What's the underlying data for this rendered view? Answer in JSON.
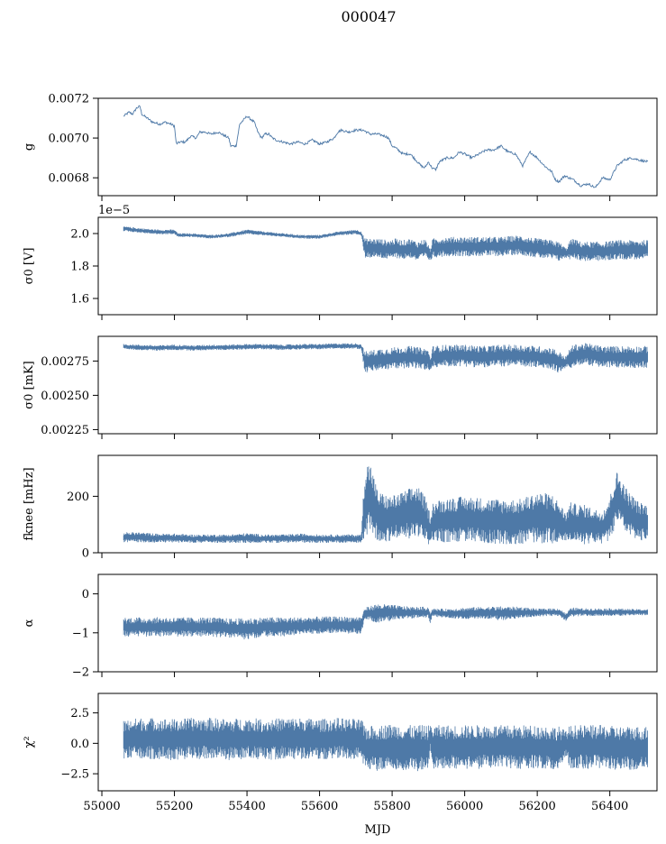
{
  "figure": {
    "title": "000047",
    "xlabel": "MJD",
    "line_color": "#4e79a7"
  },
  "chart_data": [
    {
      "type": "line",
      "ylabel": "g",
      "ylim": [
        0.00671,
        0.0072
      ],
      "yticks": [
        "0.0068",
        "0.0070",
        "0.0072"
      ],
      "ytick_values": [
        0.0068,
        0.007,
        0.0072
      ],
      "xlim": [
        54990,
        56530
      ],
      "series": [
        {
          "render": "line",
          "x": [
            55060,
            55075,
            55085,
            55095,
            55105,
            55110,
            55125,
            55140,
            55160,
            55175,
            55190,
            55200,
            55205,
            55215,
            55230,
            55245,
            55260,
            55270,
            55285,
            55300,
            55320,
            55340,
            55350,
            55355,
            55370,
            55380,
            55400,
            55420,
            55430,
            55440,
            55450,
            55460,
            55470,
            55480,
            55500,
            55520,
            55540,
            55560,
            55580,
            55600,
            55620,
            55640,
            55650,
            55660,
            55680,
            55700,
            55720,
            55740,
            55760,
            55780,
            55790,
            55800,
            55810,
            55830,
            55850,
            55860,
            55870,
            55880,
            55890,
            55900,
            55910,
            55920,
            55930,
            55950,
            55970,
            55985,
            56000,
            56020,
            56040,
            56060,
            56080,
            56100,
            56120,
            56140,
            56160,
            56180,
            56200,
            56220,
            56240,
            56250,
            56260,
            56275,
            56300,
            56320,
            56340,
            56360,
            56380,
            56400,
            56420,
            56440,
            56460,
            56480,
            56505
          ],
          "y": [
            0.00711,
            0.00713,
            0.00712,
            0.00715,
            0.00716,
            0.00712,
            0.0071,
            0.00708,
            0.00707,
            0.00708,
            0.00707,
            0.00706,
            0.00697,
            0.00698,
            0.00698,
            0.00701,
            0.007,
            0.00703,
            0.00703,
            0.00702,
            0.00703,
            0.00701,
            0.007,
            0.00696,
            0.00696,
            0.00707,
            0.00711,
            0.00708,
            0.00703,
            0.007,
            0.00702,
            0.00702,
            0.007,
            0.00699,
            0.00698,
            0.00697,
            0.00698,
            0.00697,
            0.00699,
            0.00697,
            0.00698,
            0.007,
            0.00703,
            0.00704,
            0.00703,
            0.00704,
            0.00704,
            0.00702,
            0.00702,
            0.00701,
            0.007,
            0.00696,
            0.00695,
            0.00692,
            0.00692,
            0.0069,
            0.00688,
            0.00686,
            0.00685,
            0.00688,
            0.00685,
            0.00684,
            0.00688,
            0.0069,
            0.0069,
            0.00693,
            0.00692,
            0.0069,
            0.00692,
            0.00694,
            0.00694,
            0.00696,
            0.00693,
            0.00692,
            0.00686,
            0.00693,
            0.0069,
            0.00686,
            0.00683,
            0.00679,
            0.00678,
            0.00681,
            0.00679,
            0.00676,
            0.00677,
            0.00675,
            0.0068,
            0.00679,
            0.00686,
            0.00689,
            0.0069,
            0.00689,
            0.00688
          ]
        }
      ]
    },
    {
      "type": "line",
      "ylabel": "σ0 [V]",
      "ylim": [
        1.5e-05,
        2.1e-05
      ],
      "yticks": [
        "1.6",
        "1.8",
        "2.0"
      ],
      "ytick_values": [
        1.6e-05,
        1.8e-05,
        2e-05
      ],
      "offset_text": "1e−5",
      "xlim": [
        54990,
        56530
      ],
      "series": [
        {
          "render": "band",
          "x": [
            55060,
            55100,
            55150,
            55200,
            55210,
            55250,
            55300,
            55350,
            55400,
            55450,
            55500,
            55550,
            55600,
            55650,
            55700,
            55715,
            55725,
            55760,
            55790,
            55810,
            55830,
            55850,
            55870,
            55890,
            55905,
            55912,
            55950,
            56000,
            56050,
            56100,
            56150,
            56200,
            56240,
            56260,
            56280,
            56290,
            56300,
            56320,
            56340,
            56380,
            56420,
            56460,
            56505
          ],
          "y": [
            2.03e-05,
            2.02e-05,
            2.01e-05,
            2.01e-05,
            1.99e-05,
            1.99e-05,
            1.98e-05,
            1.99e-05,
            2.01e-05,
            2e-05,
            1.99e-05,
            1.98e-05,
            1.98e-05,
            2e-05,
            2.01e-05,
            2e-05,
            1.91e-05,
            1.91e-05,
            1.9e-05,
            1.91e-05,
            1.9e-05,
            1.91e-05,
            1.89e-05,
            1.91e-05,
            1.87e-05,
            1.91e-05,
            1.92e-05,
            1.92e-05,
            1.92e-05,
            1.92e-05,
            1.93e-05,
            1.91e-05,
            1.9e-05,
            1.89e-05,
            1.88e-05,
            1.9e-05,
            1.91e-05,
            1.89e-05,
            1.89e-05,
            1.89e-05,
            1.9e-05,
            1.9e-05,
            1.9e-05
          ],
          "spread": [
            1.5e-07,
            1.5e-07,
            1.5e-07,
            1.5e-07,
            1.2e-07,
            1.2e-07,
            1.2e-07,
            1.2e-07,
            1.5e-07,
            1.2e-07,
            1.2e-07,
            1.2e-07,
            1.2e-07,
            1.2e-07,
            1.5e-07,
            1.5e-07,
            6e-07,
            6e-07,
            6e-07,
            6e-07,
            6e-07,
            6e-07,
            6e-07,
            6e-07,
            4e-07,
            6e-07,
            6e-07,
            6e-07,
            6e-07,
            6e-07,
            6e-07,
            6e-07,
            6e-07,
            6e-07,
            3e-07,
            6e-07,
            6e-07,
            6e-07,
            6e-07,
            6e-07,
            6e-07,
            6e-07,
            6e-07
          ]
        }
      ]
    },
    {
      "type": "line",
      "ylabel": "σ0 [mK]",
      "ylim": [
        0.00222,
        0.00293
      ],
      "yticks": [
        "0.00225",
        "0.00250",
        "0.00275"
      ],
      "ytick_values": [
        0.00225,
        0.0025,
        0.00275
      ],
      "xlim": [
        54990,
        56530
      ],
      "series": [
        {
          "render": "band",
          "x": [
            55060,
            55100,
            55150,
            55200,
            55250,
            55300,
            55350,
            55400,
            55450,
            55500,
            55550,
            55600,
            55650,
            55700,
            55715,
            55725,
            55760,
            55800,
            55850,
            55900,
            55905,
            55912,
            55950,
            56000,
            56050,
            56100,
            56150,
            56200,
            56240,
            56260,
            56280,
            56290,
            56300,
            56320,
            56340,
            56380,
            56420,
            56460,
            56505
          ],
          "y": [
            0.002855,
            0.00285,
            0.002845,
            0.00285,
            0.002845,
            0.00285,
            0.00285,
            0.002855,
            0.002855,
            0.00285,
            0.002855,
            0.002855,
            0.00286,
            0.00286,
            0.002855,
            0.00274,
            0.00276,
            0.00277,
            0.00278,
            0.00276,
            0.00272,
            0.00278,
            0.00279,
            0.00279,
            0.00278,
            0.00279,
            0.00279,
            0.00278,
            0.00277,
            0.00274,
            0.00274,
            0.00277,
            0.00279,
            0.0028,
            0.0028,
            0.00278,
            0.00278,
            0.00278,
            0.00278
          ],
          "spread": [
            2e-05,
            2e-05,
            2e-05,
            2e-05,
            2e-05,
            2e-05,
            2e-05,
            2e-05,
            2e-05,
            2e-05,
            2e-05,
            2e-05,
            2e-05,
            2e-05,
            2e-05,
            8e-05,
            8e-05,
            8e-05,
            8e-05,
            8e-05,
            5e-05,
            8e-05,
            8e-05,
            8e-05,
            8e-05,
            8e-05,
            8e-05,
            8e-05,
            8e-05,
            8e-05,
            4e-05,
            8e-05,
            8e-05,
            8e-05,
            8e-05,
            8e-05,
            8e-05,
            8e-05,
            8e-05
          ]
        }
      ]
    },
    {
      "type": "line",
      "ylabel": "fknee [mHz]",
      "ylim": [
        0,
        345
      ],
      "yticks": [
        "0",
        "200"
      ],
      "ytick_values": [
        0,
        200
      ],
      "xlim": [
        54990,
        56530
      ],
      "series": [
        {
          "render": "band",
          "x": [
            55060,
            55100,
            55150,
            55200,
            55250,
            55300,
            55350,
            55400,
            55450,
            55500,
            55550,
            55600,
            55650,
            55700,
            55715,
            55725,
            55740,
            55760,
            55790,
            55820,
            55850,
            55870,
            55890,
            55905,
            55912,
            55950,
            56000,
            56050,
            56100,
            56150,
            56200,
            56240,
            56260,
            56280,
            56290,
            56300,
            56330,
            56360,
            56380,
            56400,
            56420,
            56450,
            56480,
            56505
          ],
          "y": [
            55,
            55,
            52,
            52,
            50,
            50,
            50,
            52,
            50,
            50,
            52,
            50,
            50,
            50,
            50,
            170,
            200,
            130,
            120,
            130,
            140,
            150,
            120,
            80,
            110,
            115,
            120,
            115,
            110,
            110,
            125,
            120,
            110,
            90,
            110,
            105,
            100,
            95,
            90,
            120,
            200,
            140,
            110,
            110
          ],
          "spread": [
            18,
            18,
            16,
            16,
            15,
            15,
            15,
            18,
            15,
            15,
            16,
            15,
            15,
            15,
            15,
            150,
            120,
            90,
            80,
            80,
            90,
            90,
            80,
            60,
            70,
            80,
            80,
            80,
            80,
            80,
            90,
            90,
            70,
            50,
            70,
            70,
            70,
            60,
            60,
            80,
            90,
            80,
            70,
            60
          ]
        }
      ]
    },
    {
      "type": "line",
      "ylabel": "α",
      "ylim": [
        -2,
        0.5
      ],
      "yticks": [
        "−2",
        "−1",
        "0"
      ],
      "ytick_values": [
        -2,
        -1,
        0
      ],
      "xlim": [
        54990,
        56530
      ],
      "series": [
        {
          "render": "band",
          "x": [
            55060,
            55100,
            55150,
            55200,
            55250,
            55300,
            55350,
            55400,
            55450,
            55500,
            55550,
            55600,
            55650,
            55700,
            55715,
            55725,
            55760,
            55800,
            55850,
            55900,
            55905,
            55912,
            55950,
            56000,
            56050,
            56100,
            56150,
            56200,
            56240,
            56260,
            56280,
            56290,
            56300,
            56320,
            56340,
            56380,
            56420,
            56460,
            56505
          ],
          "y": [
            -0.85,
            -0.85,
            -0.85,
            -0.85,
            -0.85,
            -0.85,
            -0.88,
            -0.9,
            -0.85,
            -0.85,
            -0.82,
            -0.8,
            -0.8,
            -0.8,
            -0.8,
            -0.5,
            -0.5,
            -0.48,
            -0.48,
            -0.48,
            -0.6,
            -0.48,
            -0.5,
            -0.5,
            -0.48,
            -0.5,
            -0.48,
            -0.48,
            -0.47,
            -0.47,
            -0.6,
            -0.48,
            -0.47,
            -0.47,
            -0.47,
            -0.47,
            -0.47,
            -0.47,
            -0.47
          ],
          "spread": [
            0.25,
            0.25,
            0.25,
            0.25,
            0.25,
            0.25,
            0.25,
            0.28,
            0.25,
            0.25,
            0.22,
            0.22,
            0.22,
            0.22,
            0.22,
            0.15,
            0.25,
            0.2,
            0.15,
            0.15,
            0.15,
            0.1,
            0.12,
            0.15,
            0.15,
            0.18,
            0.15,
            0.1,
            0.1,
            0.1,
            0.1,
            0.1,
            0.12,
            0.1,
            0.1,
            0.1,
            0.1,
            0.08,
            0.08
          ]
        }
      ]
    },
    {
      "type": "line",
      "ylabel": "χ²",
      "ylim": [
        -3.9,
        4.1
      ],
      "yticks": [
        "−2.5",
        "0.0",
        "2.5"
      ],
      "ytick_values": [
        -2.5,
        0.0,
        2.5
      ],
      "xlim": [
        54990,
        56530
      ],
      "series": [
        {
          "render": "band",
          "x": [
            55060,
            55100,
            55150,
            55200,
            55250,
            55300,
            55350,
            55400,
            55450,
            55500,
            55550,
            55600,
            55650,
            55700,
            55715,
            55725,
            55760,
            55800,
            55850,
            55900,
            55905,
            55912,
            55950,
            56000,
            56050,
            56100,
            56150,
            56200,
            56240,
            56260,
            56280,
            56290,
            56300,
            56320,
            56340,
            56380,
            56420,
            56460,
            56505
          ],
          "y": [
            0.3,
            0.4,
            0.4,
            0.3,
            0.4,
            0.4,
            0.3,
            0.4,
            0.3,
            0.4,
            0.4,
            0.3,
            0.4,
            0.3,
            0.3,
            -0.4,
            -0.4,
            -0.3,
            -0.4,
            -0.4,
            0.5,
            -0.3,
            -0.3,
            -0.3,
            -0.3,
            -0.3,
            -0.3,
            -0.3,
            -0.4,
            -0.4,
            0.0,
            -0.3,
            -0.3,
            -0.3,
            -0.3,
            -0.3,
            -0.4,
            -0.4,
            -0.4
          ],
          "spread": [
            1.6,
            1.7,
            1.7,
            1.7,
            1.7,
            1.7,
            1.7,
            1.7,
            1.7,
            1.7,
            1.7,
            1.7,
            1.7,
            1.7,
            1.7,
            1.8,
            1.9,
            1.9,
            1.9,
            1.9,
            1.0,
            1.8,
            1.8,
            1.8,
            1.8,
            1.8,
            1.8,
            1.8,
            1.8,
            1.8,
            1.0,
            1.8,
            1.8,
            1.8,
            1.8,
            1.8,
            1.8,
            1.8,
            1.8
          ]
        }
      ]
    }
  ],
  "x_axis": {
    "tick_values": [
      55000,
      55200,
      55400,
      55600,
      55800,
      56000,
      56200,
      56400
    ],
    "tick_labels": [
      "55000",
      "55200",
      "55400",
      "55600",
      "55800",
      "56000",
      "56200",
      "56400"
    ]
  }
}
